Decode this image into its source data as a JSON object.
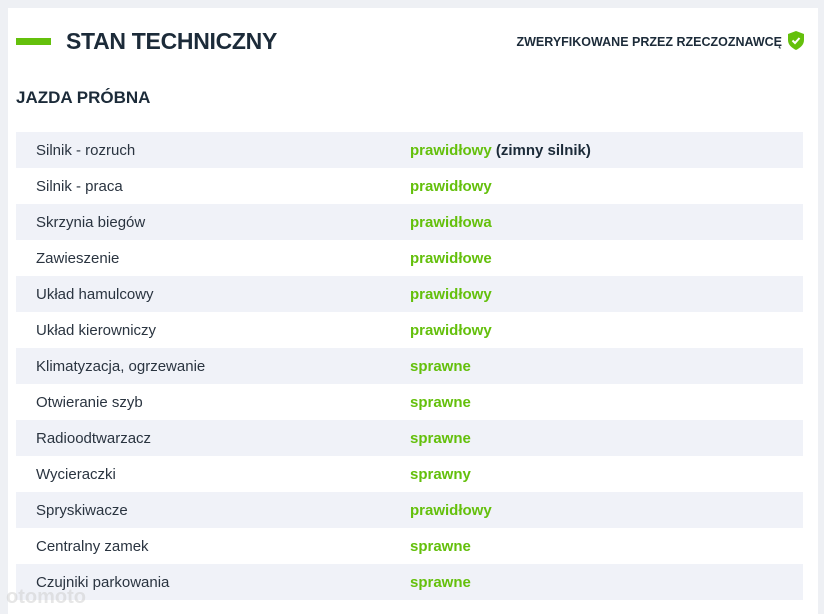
{
  "header": {
    "title": "STAN TECHNICZNY",
    "badge": "ZWERYFIKOWANE PRZEZ RZECZOZNAWCĘ"
  },
  "section": {
    "title": "JAZDA PRÓBNA"
  },
  "table": {
    "rows": [
      {
        "label": "Silnik - rozruch",
        "value": "prawidłowy",
        "note": "(zimny silnik)"
      },
      {
        "label": "Silnik - praca",
        "value": "prawidłowy"
      },
      {
        "label": "Skrzynia biegów",
        "value": "prawidłowa"
      },
      {
        "label": "Zawieszenie",
        "value": "prawidłowe"
      },
      {
        "label": "Układ hamulcowy",
        "value": "prawidłowy"
      },
      {
        "label": "Układ kierowniczy",
        "value": "prawidłowy"
      },
      {
        "label": "Klimatyzacja, ogrzewanie",
        "value": "sprawne"
      },
      {
        "label": "Otwieranie szyb",
        "value": "sprawne"
      },
      {
        "label": "Radioodtwarzacz",
        "value": "sprawne"
      },
      {
        "label": "Wycieraczki",
        "value": "sprawny"
      },
      {
        "label": "Spryskiwacze",
        "value": "prawidłowy"
      },
      {
        "label": "Centralny zamek",
        "value": "sprawne"
      },
      {
        "label": "Czujniki parkowania",
        "value": "sprawne"
      }
    ]
  },
  "watermark": "otomoto"
}
